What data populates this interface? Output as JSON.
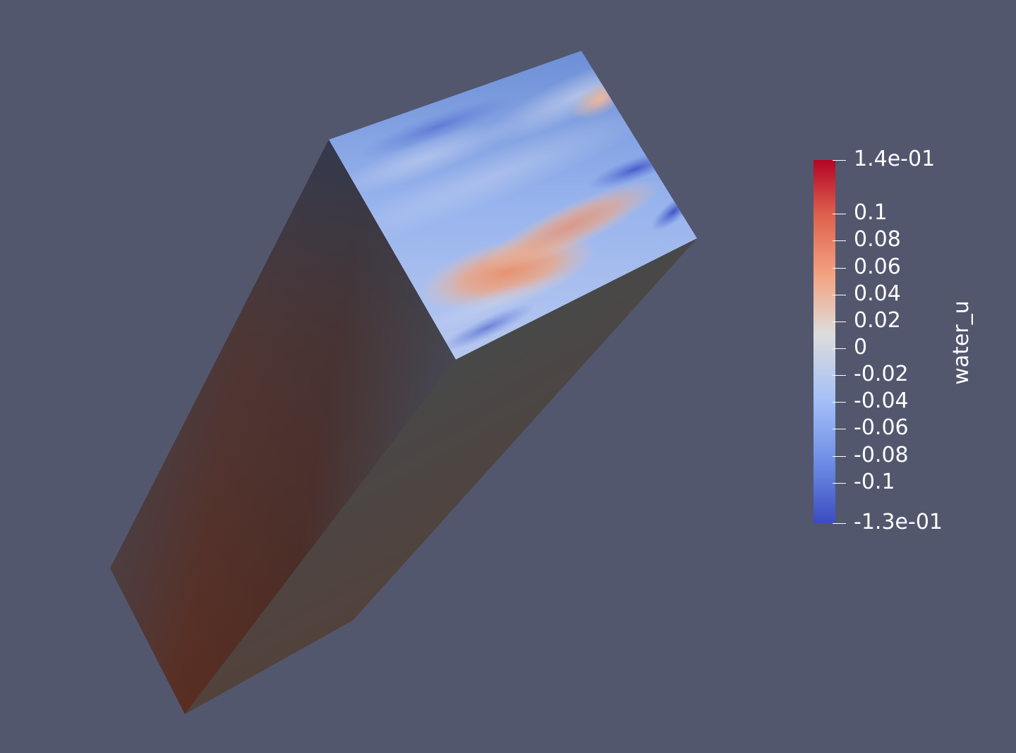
{
  "scene": {
    "background": "#52576e",
    "variable": "water_u",
    "colormap": "Cool to Warm",
    "colors": {
      "min": "#3b4cc0",
      "mid": "#dddddd",
      "max": "#b40426",
      "shaded_side": "#4a4a4e",
      "warm_side": "#5a2a1e"
    }
  },
  "colorbar": {
    "title": "water_u",
    "range": [
      -0.13,
      0.14
    ],
    "ticks": [
      {
        "value": 0.14,
        "label": "1.4e-01"
      },
      {
        "value": 0.1,
        "label": "0.1"
      },
      {
        "value": 0.08,
        "label": "0.08"
      },
      {
        "value": 0.06,
        "label": "0.06"
      },
      {
        "value": 0.04,
        "label": "0.04"
      },
      {
        "value": 0.02,
        "label": "0.02"
      },
      {
        "value": 0,
        "label": "0"
      },
      {
        "value": -0.02,
        "label": "-0.02"
      },
      {
        "value": -0.04,
        "label": "-0.04"
      },
      {
        "value": -0.06,
        "label": "-0.06"
      },
      {
        "value": -0.08,
        "label": "-0.08"
      },
      {
        "value": -0.1,
        "label": "-0.1"
      },
      {
        "value": -0.13,
        "label": "-1.3e-01"
      }
    ]
  }
}
